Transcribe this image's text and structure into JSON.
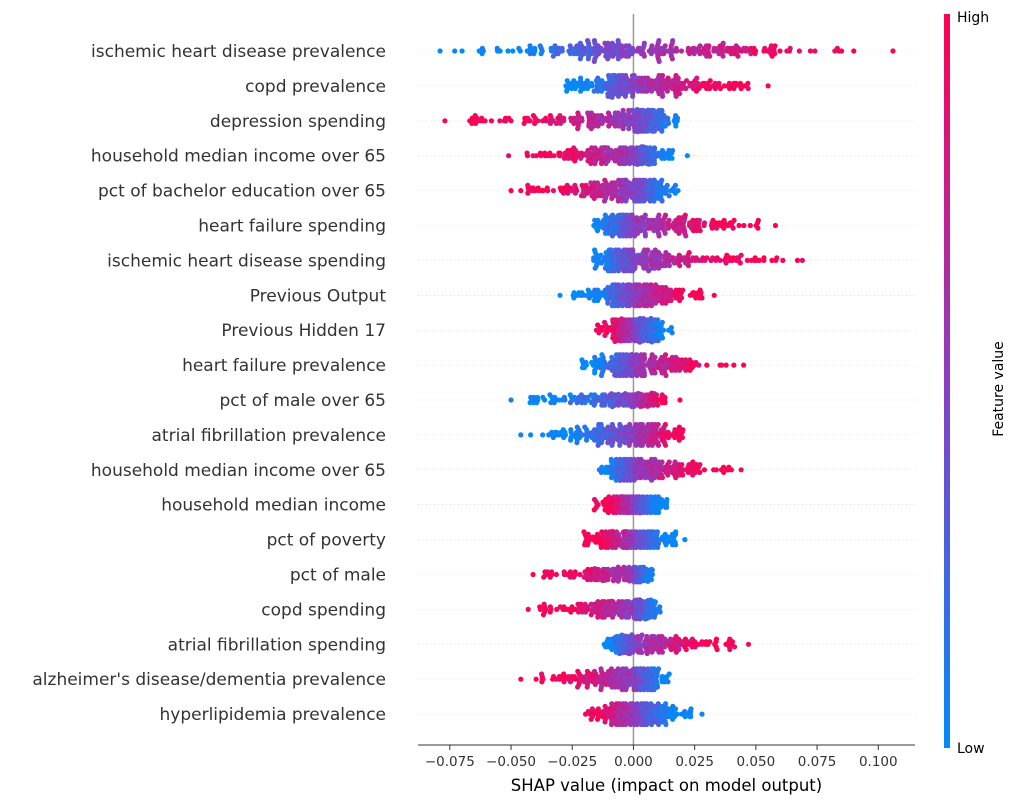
{
  "chart_data": {
    "type": "scatter",
    "subtype": "shap-beeswarm",
    "xlabel": "SHAP value (impact on model output)",
    "xlim": [
      -0.088,
      0.115
    ],
    "xticks": [
      -0.075,
      -0.05,
      -0.025,
      0.0,
      0.025,
      0.05,
      0.075,
      0.1
    ],
    "xtick_labels": [
      "−0.075",
      "−0.050",
      "−0.025",
      "0.000",
      "0.025",
      "0.050",
      "0.075",
      "0.100"
    ],
    "colorbar": {
      "label": "Feature value",
      "high": "High",
      "low": "Low",
      "color_high": "#ff0052",
      "color_low": "#008bfb"
    },
    "grid": false,
    "features": [
      {
        "name": "ischemic heart disease prevalence",
        "min": -0.079,
        "max": 0.106,
        "hi_side": "positive",
        "density": [
          [
            -0.035,
            0.0
          ],
          [
            0.0,
            1.0
          ],
          [
            0.035,
            0.0
          ]
        ],
        "outliers_lo": [
          -0.079,
          -0.073,
          -0.07,
          -0.063
        ],
        "outliers_hi": [
          0.085,
          0.09,
          0.106
        ],
        "width": 1.0
      },
      {
        "name": "copd prevalence",
        "min": -0.035,
        "max": 0.055,
        "hi_side": "positive",
        "outliers_lo": [],
        "outliers_hi": [
          0.044,
          0.055
        ],
        "width": 0.85
      },
      {
        "name": "depression spending",
        "min": -0.077,
        "max": 0.027,
        "hi_side": "negative",
        "outliers_lo": [
          -0.077,
          -0.062,
          -0.058,
          -0.05
        ],
        "outliers_hi": [],
        "width": 0.75
      },
      {
        "name": "household median income over 65",
        "min": -0.051,
        "max": 0.022,
        "hi_side": "negative",
        "outliers_lo": [
          -0.051,
          -0.038
        ],
        "outliers_hi": [
          0.022
        ],
        "width": 0.6,
        "clustered": true
      },
      {
        "name": "pct of bachelor education over 65",
        "min": -0.05,
        "max": 0.025,
        "hi_side": "negative",
        "outliers_lo": [
          -0.05,
          -0.046,
          -0.043
        ],
        "outliers_hi": [],
        "width": 0.7
      },
      {
        "name": "heart failure spending",
        "min": -0.023,
        "max": 0.058,
        "hi_side": "positive",
        "outliers_lo": [],
        "outliers_hi": [
          0.04,
          0.051,
          0.058
        ],
        "width": 0.7
      },
      {
        "name": "ischemic heart disease spending",
        "min": -0.024,
        "max": 0.069,
        "hi_side": "positive",
        "outliers_lo": [],
        "outliers_hi": [
          0.044,
          0.067,
          0.069
        ],
        "width": 0.7
      },
      {
        "name": "Previous Output",
        "min": -0.03,
        "max": 0.033,
        "hi_side": "positive",
        "outliers_lo": [
          -0.03
        ],
        "outliers_hi": [
          0.028,
          0.033
        ],
        "width": 0.7
      },
      {
        "name": "Previous Hidden 17",
        "min": -0.019,
        "max": 0.019,
        "hi_side": "negative",
        "outliers_lo": [],
        "outliers_hi": [],
        "width": 0.8,
        "blocky": true
      },
      {
        "name": "heart failure prevalence",
        "min": -0.027,
        "max": 0.045,
        "hi_side": "positive",
        "outliers_lo": [],
        "outliers_hi": [
          0.041,
          0.045
        ],
        "width": 0.7
      },
      {
        "name": "pct of male over 65",
        "min": -0.05,
        "max": 0.019,
        "hi_side": "positive",
        "outliers_lo": [
          -0.05
        ],
        "outliers_hi": [
          0.019
        ],
        "width": 0.45
      },
      {
        "name": "atrial fibrillation prevalence",
        "min": -0.046,
        "max": 0.026,
        "hi_side": "positive",
        "outliers_lo": [
          -0.046,
          -0.042
        ],
        "outliers_hi": [],
        "width": 0.7
      },
      {
        "name": "household median income over 65",
        "min": -0.019,
        "max": 0.044,
        "hi_side": "positive",
        "outliers_lo": [],
        "outliers_hi": [
          0.04,
          0.044
        ],
        "width": 0.7
      },
      {
        "name": "household median income",
        "min": -0.019,
        "max": 0.017,
        "hi_side": "negative",
        "outliers_lo": [],
        "outliers_hi": [],
        "width": 0.55
      },
      {
        "name": "pct of poverty",
        "min": -0.024,
        "max": 0.021,
        "hi_side": "negative",
        "outliers_lo": [],
        "outliers_hi": [
          0.021
        ],
        "width": 0.55
      },
      {
        "name": "pct of male",
        "min": -0.041,
        "max": 0.012,
        "hi_side": "negative",
        "outliers_lo": [
          -0.041,
          -0.034
        ],
        "outliers_hi": [],
        "width": 0.5
      },
      {
        "name": "copd spending",
        "min": -0.043,
        "max": 0.016,
        "hi_side": "negative",
        "outliers_lo": [
          -0.043,
          -0.038,
          -0.034
        ],
        "outliers_hi": [],
        "width": 0.65
      },
      {
        "name": "atrial fibrillation spending",
        "min": -0.018,
        "max": 0.047,
        "hi_side": "positive",
        "outliers_lo": [],
        "outliers_hi": [
          0.039,
          0.047
        ],
        "width": 0.65
      },
      {
        "name": "alzheimer's disease/dementia prevalence",
        "min": -0.046,
        "max": 0.02,
        "hi_side": "negative",
        "outliers_lo": [
          -0.046,
          -0.033
        ],
        "outliers_hi": [],
        "width": 0.7
      },
      {
        "name": "hyperlipidemia prevalence",
        "min": -0.024,
        "max": 0.028,
        "hi_side": "negative",
        "outliers_lo": [],
        "outliers_hi": [
          0.028
        ],
        "width": 0.7
      }
    ]
  }
}
